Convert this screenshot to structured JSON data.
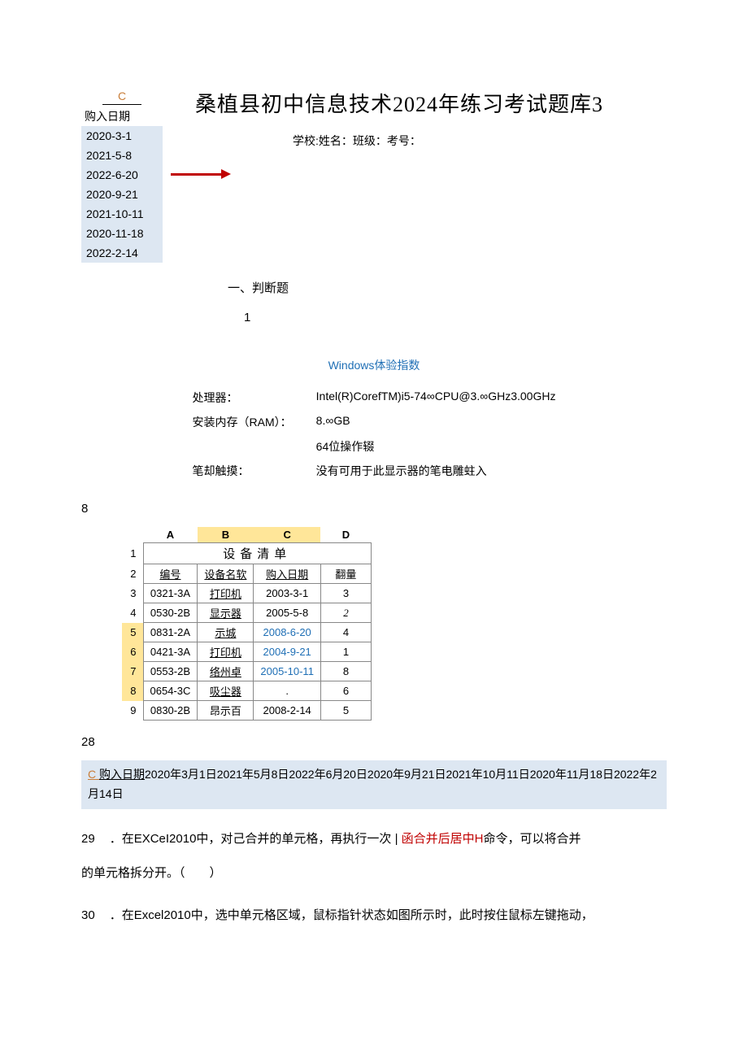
{
  "topleft": {
    "col_label": "C",
    "col_header": "购入日期",
    "dates": [
      "2020-3-1",
      "2021-5-8",
      "2022-6-20",
      "2020-9-21",
      "2021-10-11",
      "2020-11-18",
      "2022-2-14"
    ],
    "bg_color": "#dde7f2"
  },
  "title": "桑植县初中信息技术2024年练习考试题库3",
  "subtitle": "学校:姓名：班级：考号：",
  "arrow_color": "#c00000",
  "section_label": "一、判断题",
  "q1_number": "1",
  "wei": {
    "title": "Windows体验指数",
    "title_color": "#1f6fb5",
    "rows": [
      {
        "label": "处理器：",
        "value": "Intel(R)CorefTM)i5-74∞CPU@3.∞GHz3.00GHz"
      },
      {
        "label": "安装内存（RAM）：",
        "value": "8.∞GB"
      },
      {
        "label": "",
        "value": "64位操作辍"
      },
      {
        "label": "笔却触摸：",
        "value": "没有可用于此显示器的笔电雕蛀入"
      }
    ]
  },
  "lone_8": "8",
  "equipment": {
    "col_headers": [
      "A",
      "B",
      "C",
      "D"
    ],
    "highlight_cols": [
      1,
      2
    ],
    "title": "设备清单",
    "header_row": [
      "编号",
      "设备名软",
      "购入日期",
      "翻量"
    ],
    "header_underline": [
      true,
      true,
      true,
      false
    ],
    "rows": [
      {
        "n": "3",
        "hl": false,
        "cells": [
          "0321-3A",
          "打印机",
          "2003-3-1",
          "3"
        ],
        "u": [
          false,
          true,
          false,
          false
        ],
        "blue": [
          false,
          false,
          false,
          false
        ]
      },
      {
        "n": "4",
        "hl": false,
        "cells": [
          "0530-2B",
          "显示器",
          "2005-5-8",
          "2"
        ],
        "u": [
          false,
          true,
          false,
          false
        ],
        "blue": [
          false,
          false,
          false,
          false
        ],
        "italic_last": true
      },
      {
        "n": "5",
        "hl": true,
        "cells": [
          "0831-2A",
          "示城",
          "2008-6-20",
          "4"
        ],
        "u": [
          false,
          true,
          false,
          false
        ],
        "blue": [
          false,
          false,
          true,
          false
        ]
      },
      {
        "n": "6",
        "hl": true,
        "cells": [
          "0421-3A",
          "打印机",
          "2004-9-21",
          "1"
        ],
        "u": [
          false,
          true,
          false,
          false
        ],
        "blue": [
          false,
          false,
          true,
          false
        ]
      },
      {
        "n": "7",
        "hl": true,
        "cells": [
          "0553-2B",
          "络州卓",
          "2005-10-11",
          "8"
        ],
        "u": [
          false,
          true,
          false,
          false
        ],
        "blue": [
          false,
          false,
          true,
          false
        ]
      },
      {
        "n": "8",
        "hl": true,
        "cells": [
          "0654-3C",
          "吸尘器",
          ".",
          "6"
        ],
        "u": [
          false,
          true,
          false,
          false
        ],
        "blue": [
          false,
          false,
          false,
          false
        ]
      },
      {
        "n": "9",
        "hl": false,
        "cells": [
          "0830-2B",
          "昂示百",
          "2008-2-14",
          "5"
        ],
        "u": [
          false,
          false,
          false,
          false
        ],
        "blue": [
          false,
          false,
          false,
          false
        ]
      }
    ],
    "row_hl_color": "#ffe699"
  },
  "lone_28": "28",
  "highlight_text": {
    "prefix_c": "C ",
    "prefix_u": "购入日期",
    "body": "2020年3月1日2021年5月8日2022年6月20日2020年9月21日2021年10月11日2020年11月18日2022年2月14日",
    "bg_color": "#dde7f2"
  },
  "q29": {
    "number": "29",
    "text_before": "．在EXCeI2010中，对己合并的单元格，再执行一次 | ",
    "red_text": "函合并后居中H",
    "text_after": "命令，可以将合并",
    "line2": "的单元格拆分开。（　　）"
  },
  "q30": {
    "number": "30",
    "text": "．在Excel2010中，选中单元格区域，鼠标指针状态如图所示时，此时按住鼠标左键拖动，"
  }
}
